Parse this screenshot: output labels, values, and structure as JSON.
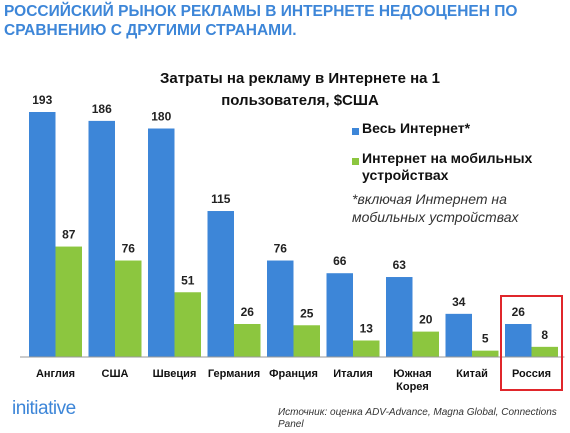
{
  "header": {
    "title": "РОССИЙСКИЙ РЫНОК РЕКЛАМЫ В ИНТЕРНЕТЕ НЕДООЦЕНЕН ПО СРАВНЕНИЮ С ДРУГИМИ СТРАНАМИ."
  },
  "chart_data": {
    "type": "bar",
    "title": "Затраты на рекламу в Интернете на 1 пользователя, $США",
    "note": "*включая Интернет на мобильных устройствах",
    "categories": [
      "Англия",
      "США",
      "Швеция",
      "Германия",
      "Франция",
      "Италия",
      "Южная Корея",
      "Китай",
      "Россия"
    ],
    "series": [
      {
        "name": "Весь Интернет*",
        "color": "#3d86d8",
        "values": [
          193,
          186,
          180,
          115,
          76,
          66,
          63,
          34,
          26
        ]
      },
      {
        "name": "Интернет на мобильных устройствах",
        "color": "#8cc63f",
        "values": [
          87,
          76,
          51,
          26,
          25,
          13,
          20,
          5,
          8
        ]
      }
    ]
  },
  "footer": {
    "logo": "initiative",
    "source": "Источник: оценка ADV-Advance, Magna Global, Connections Panel"
  }
}
